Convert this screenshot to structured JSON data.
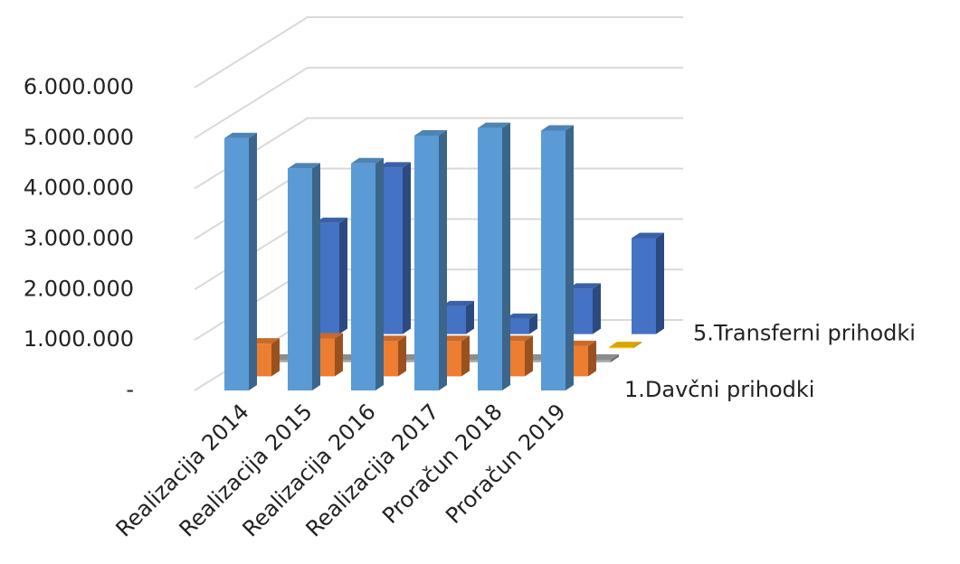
{
  "chart_data": {
    "type": "bar3d",
    "categories": [
      "Realizacija 2014",
      "Realizacija 2015",
      "Realizacija 2016",
      "Realizacija 2017",
      "Proračun 2018",
      "Proračun 2019"
    ],
    "series": [
      {
        "name": "1.Davčni prihodki",
        "color": "#5b9bd5",
        "values": [
          5000000,
          4400000,
          4500000,
          5050000,
          5200000,
          5150000
        ]
      },
      {
        "name": null,
        "color": "#ed7d31",
        "values": [
          650000,
          750000,
          700000,
          700000,
          700000,
          600000
        ]
      },
      {
        "name": null,
        "color": "#a5a5a5",
        "values": [
          50000,
          50000,
          50000,
          50000,
          50000,
          50000
        ]
      },
      {
        "name": null,
        "color": "#ffc000",
        "values": [
          20000,
          20000,
          20000,
          20000,
          20000,
          20000
        ]
      },
      {
        "name": "5.Transferni prihodki",
        "color": "#4472c4",
        "values": [
          2200000,
          3300000,
          550000,
          300000,
          900000,
          1900000
        ]
      }
    ],
    "ylim": [
      0,
      6000000
    ],
    "yticks": [
      {
        "value": 0,
        "label": "-"
      },
      {
        "value": 1000000,
        "label": "1.000.000"
      },
      {
        "value": 2000000,
        "label": "2.000.000"
      },
      {
        "value": 3000000,
        "label": "3.000.000"
      },
      {
        "value": 4000000,
        "label": "4.000.000"
      },
      {
        "value": 5000000,
        "label": "5.000.000"
      },
      {
        "value": 6000000,
        "label": "6.000.000"
      }
    ],
    "grid": true
  }
}
